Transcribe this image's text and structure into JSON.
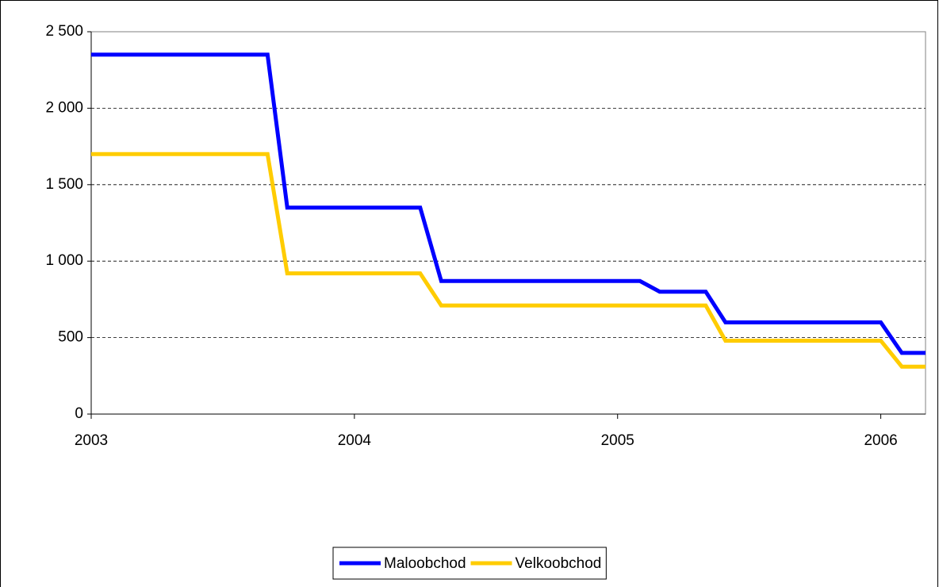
{
  "chart_data": {
    "type": "line",
    "series": [
      {
        "name": "Maloobchod",
        "color": "#0000ff",
        "x": [
          2003,
          2003.67,
          2003.745,
          2004.25,
          2004.33,
          2005.085,
          2005.16,
          2005.335,
          2005.41,
          2006.0,
          2006.08,
          2006.17
        ],
        "values": [
          2350,
          2350,
          1350,
          1350,
          870,
          870,
          800,
          800,
          600,
          600,
          400,
          400
        ]
      },
      {
        "name": "Velkoobchod",
        "color": "#ffcc00",
        "x": [
          2003,
          2003.67,
          2003.745,
          2004.25,
          2004.33,
          2005.335,
          2005.41,
          2006.0,
          2006.08,
          2006.17
        ],
        "values": [
          1700,
          1700,
          920,
          920,
          710,
          710,
          480,
          480,
          310,
          310
        ]
      }
    ],
    "xlim": [
      2003,
      2006.17
    ],
    "xticks": [
      2003,
      2004,
      2005,
      2006
    ],
    "ylim": [
      0,
      2500
    ],
    "yticks": [
      0,
      500,
      {
        "value": 1000,
        "label": "1 000"
      },
      {
        "value": 1500,
        "label": "1 500"
      },
      {
        "value": 2000,
        "label": "2 000"
      },
      {
        "value": 2500,
        "label": "2 500"
      }
    ],
    "grid": true,
    "legend": "bottom"
  }
}
